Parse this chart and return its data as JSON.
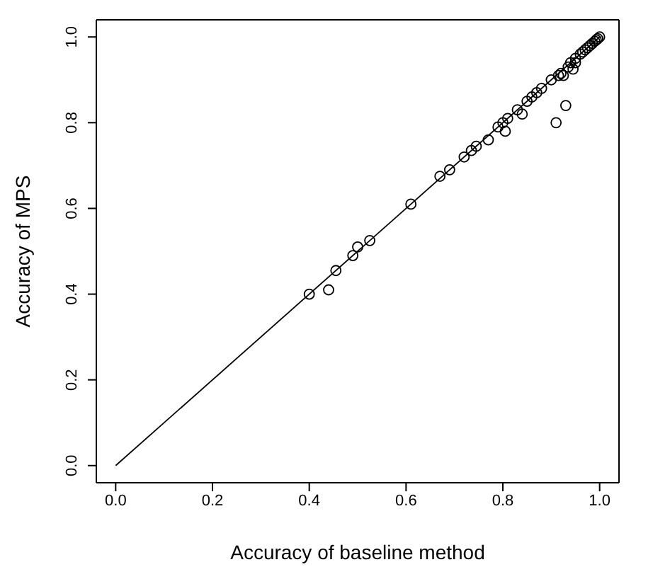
{
  "chart_data": {
    "type": "scatter",
    "xlabel": "Accuracy of baseline method",
    "ylabel": "Accuracy of MPS",
    "grid": false,
    "xlim": [
      -0.04,
      1.04
    ],
    "ylim": [
      -0.04,
      1.04
    ],
    "xticks": [
      {
        "value": 0,
        "label": "0.0"
      },
      0.2,
      0.4,
      0.6,
      0.8,
      {
        "value": 1,
        "label": "1.0"
      }
    ],
    "yticks": [
      {
        "value": 0,
        "label": "0.0"
      },
      0.2,
      0.4,
      0.6,
      0.8,
      {
        "value": 1,
        "label": "1.0"
      }
    ],
    "series": [
      {
        "marker": "circle",
        "color": "#000000",
        "x": [
          0.4,
          0.44,
          0.455,
          0.49,
          0.5,
          0.525,
          0.61,
          0.67,
          0.69,
          0.72,
          0.735,
          0.745,
          0.77,
          0.79,
          0.8,
          0.805,
          0.81,
          0.83,
          0.84,
          0.85,
          0.86,
          0.87,
          0.88,
          0.9,
          0.91,
          0.915,
          0.92,
          0.925,
          0.93,
          0.935,
          0.94,
          0.945,
          0.95,
          0.95,
          0.96,
          0.965,
          0.97,
          0.975,
          0.98,
          0.985,
          0.99,
          0.993,
          0.996,
          1.0
        ],
        "values": [
          0.4,
          0.41,
          0.455,
          0.49,
          0.51,
          0.525,
          0.61,
          0.675,
          0.69,
          0.72,
          0.735,
          0.745,
          0.76,
          0.79,
          0.8,
          0.78,
          0.81,
          0.83,
          0.82,
          0.85,
          0.86,
          0.87,
          0.88,
          0.9,
          0.8,
          0.91,
          0.915,
          0.91,
          0.84,
          0.93,
          0.94,
          0.925,
          0.95,
          0.94,
          0.96,
          0.965,
          0.97,
          0.975,
          0.98,
          0.985,
          0.99,
          0.993,
          0.996,
          1.0
        ]
      },
      {
        "type": "line",
        "color": "#000000",
        "x": [
          0,
          1
        ],
        "values": [
          0,
          1
        ]
      }
    ]
  }
}
